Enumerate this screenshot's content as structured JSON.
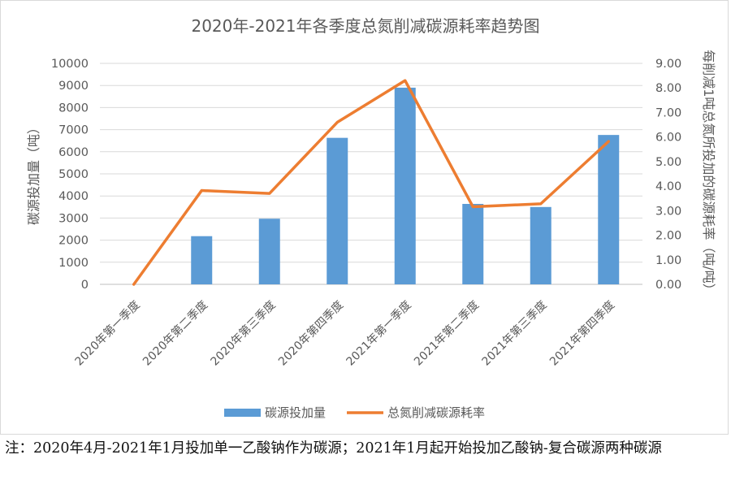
{
  "chart_data": {
    "type": "bar+line",
    "title": "2020年-2021年各季度总氮削减碳源耗率趋势图",
    "categories": [
      "2020年第一季度",
      "2020年第二季度",
      "2020年第三季度",
      "2020年第四季度",
      "2021年第一季度",
      "2021年第二季度",
      "2021年第三季度",
      "2021年第四季度"
    ],
    "ylabel": "碳源投加量（吨）",
    "y2label": "每削减1吨总氮所投加的碳源耗率（吨/吨）",
    "ylim": [
      0,
      10000
    ],
    "y2lim": [
      0,
      9
    ],
    "yticks": [
      "0",
      "1000",
      "2000",
      "3000",
      "4000",
      "5000",
      "6000",
      "7000",
      "8000",
      "9000",
      "10000"
    ],
    "y2ticks": [
      "0.00",
      "1.00",
      "2.00",
      "3.00",
      "4.00",
      "5.00",
      "6.00",
      "7.00",
      "8.00",
      "9.00"
    ],
    "grid": true,
    "legend_position": "bottom",
    "series": [
      {
        "name": "碳源投加量",
        "type": "bar",
        "axis": "left",
        "color": "#5b9bd5",
        "values": [
          0,
          2180,
          2970,
          6630,
          8900,
          3640,
          3500,
          6760
        ]
      },
      {
        "name": "总氮削减碳源耗率",
        "type": "line",
        "axis": "right",
        "color": "#ed7d31",
        "values": [
          0.0,
          3.82,
          3.7,
          6.6,
          8.3,
          3.16,
          3.28,
          5.82
        ]
      }
    ]
  },
  "footnote": "注：2020年4月-2021年1月投加单一乙酸钠作为碳源；2021年1月起开始投加乙酸钠-复合碳源两种碳源"
}
